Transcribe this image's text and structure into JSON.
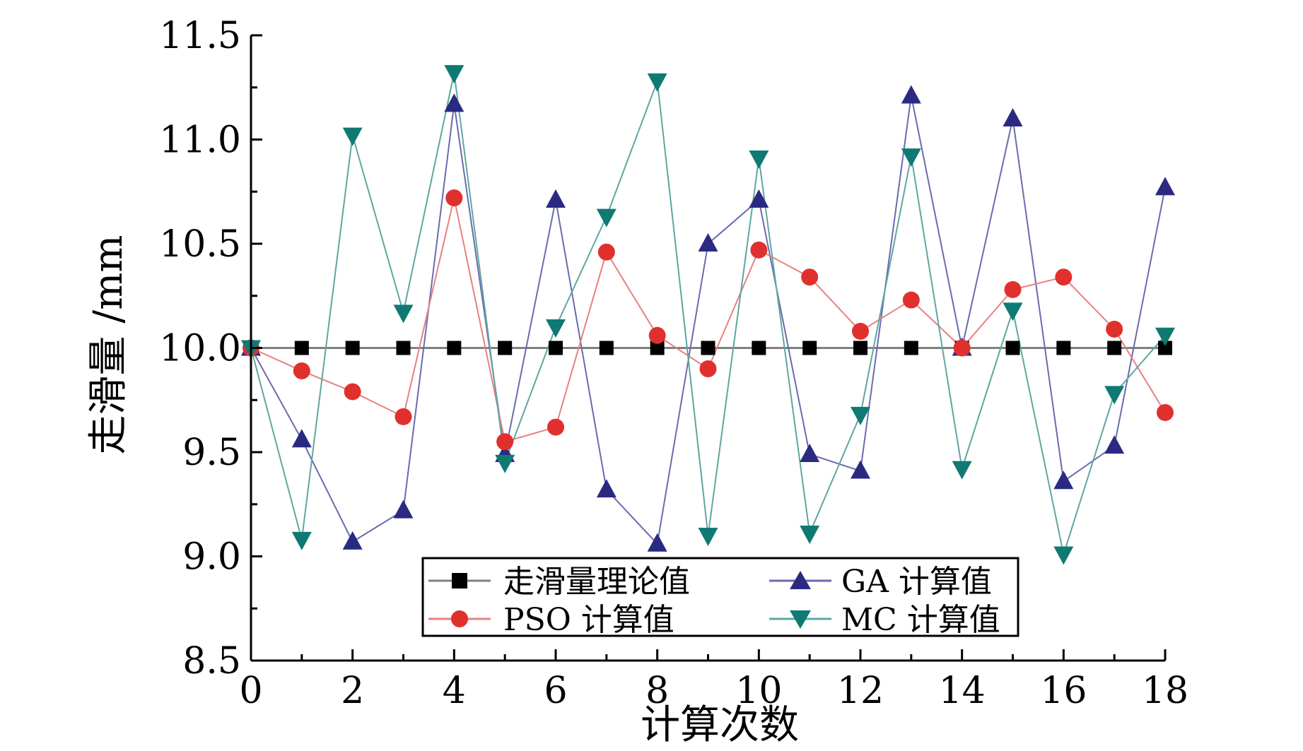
{
  "chart_data": {
    "type": "line",
    "title": "",
    "xlabel": "计算次数",
    "ylabel": "走滑量 /mm",
    "xlim": [
      0,
      18
    ],
    "ylim": [
      8.5,
      11.5
    ],
    "xticks": [
      0,
      2,
      4,
      6,
      8,
      10,
      12,
      14,
      16,
      18
    ],
    "xtick_labels": [
      "0",
      "2",
      "4",
      "6",
      "8",
      "10",
      "12",
      "14",
      "16",
      "18"
    ],
    "yticks": [
      8.5,
      9.0,
      9.5,
      10.0,
      10.5,
      11.0,
      11.5
    ],
    "ytick_labels": [
      "8.5",
      "9.0",
      "9.5",
      "10.0",
      "10.5",
      "11.0",
      "11.5"
    ],
    "grid": false,
    "legend_position": "bottom-center",
    "x": [
      0,
      1,
      2,
      3,
      4,
      5,
      6,
      7,
      8,
      9,
      10,
      11,
      12,
      13,
      14,
      15,
      16,
      17,
      18
    ],
    "series": [
      {
        "name": "走滑量理论值",
        "marker": "square",
        "color": "#000000",
        "line_color": "#7f7f7f",
        "values": [
          10.0,
          10.0,
          10.0,
          10.0,
          10.0,
          10.0,
          10.0,
          10.0,
          10.0,
          10.0,
          10.0,
          10.0,
          10.0,
          10.0,
          10.0,
          10.0,
          10.0,
          10.0,
          10.0
        ]
      },
      {
        "name": "GA 计算值",
        "marker": "triangle-up",
        "color": "#2b2a82",
        "line_color": "#6a6ab0",
        "values": [
          10.0,
          9.56,
          9.07,
          9.22,
          11.17,
          9.49,
          10.71,
          9.32,
          9.06,
          10.5,
          10.71,
          9.49,
          9.41,
          11.21,
          10.0,
          11.1,
          9.36,
          9.53,
          10.77
        ]
      },
      {
        "name": "PSO 计算值",
        "marker": "circle",
        "color": "#e0302e",
        "line_color": "#e88080",
        "values": [
          10.0,
          9.89,
          9.79,
          9.67,
          10.72,
          9.55,
          9.62,
          10.46,
          10.06,
          9.9,
          10.47,
          10.34,
          10.08,
          10.23,
          10.0,
          10.28,
          10.34,
          10.09,
          9.69
        ]
      },
      {
        "name": "MC 计算值",
        "marker": "triangle-down",
        "color": "#0f7a73",
        "line_color": "#5fa6a0",
        "values": [
          10.0,
          9.08,
          11.02,
          10.17,
          11.32,
          9.45,
          10.1,
          10.63,
          11.28,
          9.1,
          10.91,
          9.11,
          9.68,
          10.92,
          9.42,
          10.18,
          9.01,
          9.78,
          10.06
        ]
      }
    ]
  }
}
